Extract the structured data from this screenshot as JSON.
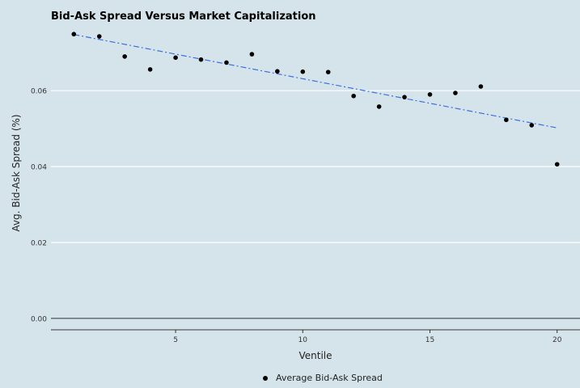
{
  "chart_data": {
    "type": "scatter",
    "title": "Bid-Ask Spread Versus Market Capitalization",
    "xlabel": "Ventile",
    "ylabel": "Avg. Bid-Ask Spread (%)",
    "x": [
      1,
      2,
      3,
      4,
      5,
      6,
      7,
      8,
      9,
      10,
      11,
      12,
      13,
      14,
      15,
      16,
      17,
      18,
      19,
      20
    ],
    "series": [
      {
        "name": "Average Bid-Ask Spread",
        "values": [
          0.0749,
          0.0743,
          0.069,
          0.0656,
          0.0687,
          0.0682,
          0.0674,
          0.0696,
          0.0651,
          0.065,
          0.0649,
          0.0586,
          0.0558,
          0.0583,
          0.059,
          0.0594,
          0.0611,
          0.0523,
          0.0509,
          0.0406
        ],
        "color": "#000000"
      }
    ],
    "trendline": {
      "start": [
        1,
        0.0748
      ],
      "end": [
        20,
        0.0502
      ],
      "color": "#3b6fe0",
      "style": "dash-dot"
    },
    "xticks": [
      5,
      10,
      15,
      20
    ],
    "yticks": [
      0.0,
      0.02,
      0.04,
      0.06
    ],
    "ytick_labels": [
      "0.00",
      "0.02",
      "0.04",
      "0.06"
    ],
    "xlim": [
      0.1,
      20.9
    ],
    "ylim": [
      -0.003,
      0.0775
    ],
    "grid": "horizontal",
    "legend_position": "bottom",
    "background": "#d5e4eb"
  }
}
